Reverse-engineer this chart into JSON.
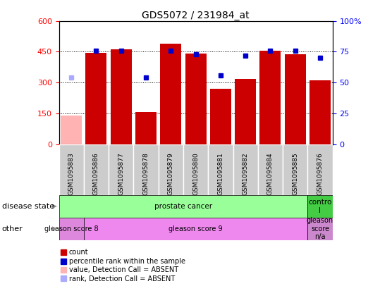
{
  "title": "GDS5072 / 231984_at",
  "samples": [
    "GSM1095883",
    "GSM1095886",
    "GSM1095877",
    "GSM1095878",
    "GSM1095879",
    "GSM1095880",
    "GSM1095881",
    "GSM1095882",
    "GSM1095884",
    "GSM1095885",
    "GSM1095876"
  ],
  "counts": [
    140,
    445,
    462,
    158,
    490,
    440,
    270,
    320,
    455,
    438,
    312
  ],
  "count_absent": [
    true,
    false,
    false,
    false,
    false,
    false,
    false,
    false,
    false,
    false,
    false
  ],
  "percentile_ranks": [
    54,
    76,
    76,
    54,
    76,
    73,
    56,
    72,
    76,
    76,
    70
  ],
  "rank_absent": [
    true,
    false,
    false,
    false,
    false,
    false,
    false,
    false,
    false,
    false,
    false
  ],
  "ylim_left": [
    0,
    600
  ],
  "ylim_right": [
    0,
    100
  ],
  "yticks_left": [
    0,
    150,
    300,
    450,
    600
  ],
  "yticks_right": [
    0,
    25,
    50,
    75,
    100
  ],
  "ytick_labels_right": [
    "0",
    "25",
    "50",
    "75",
    "100%"
  ],
  "bar_color_normal": "#cc0000",
  "bar_color_absent": "#ffb3b3",
  "dot_color_normal": "#0000cc",
  "dot_color_absent": "#aaaaff",
  "disease_state_labels": [
    {
      "label": "prostate cancer",
      "start": 0,
      "end": 10,
      "color": "#99ff99"
    },
    {
      "label": "contro\nl",
      "start": 10,
      "end": 11,
      "color": "#44cc44"
    }
  ],
  "other_labels": [
    {
      "label": "gleason score 8",
      "start": 0,
      "end": 1,
      "color": "#dd88dd"
    },
    {
      "label": "gleason score 9",
      "start": 1,
      "end": 10,
      "color": "#ee88ee"
    },
    {
      "label": "gleason\nscore\nn/a",
      "start": 10,
      "end": 11,
      "color": "#cc88cc"
    }
  ],
  "left_label_disease": "disease state",
  "left_label_other": "other",
  "legend_items": [
    {
      "label": "count",
      "color": "#cc0000"
    },
    {
      "label": "percentile rank within the sample",
      "color": "#0000cc"
    },
    {
      "label": "value, Detection Call = ABSENT",
      "color": "#ffb3b3"
    },
    {
      "label": "rank, Detection Call = ABSENT",
      "color": "#aaaaff"
    }
  ]
}
